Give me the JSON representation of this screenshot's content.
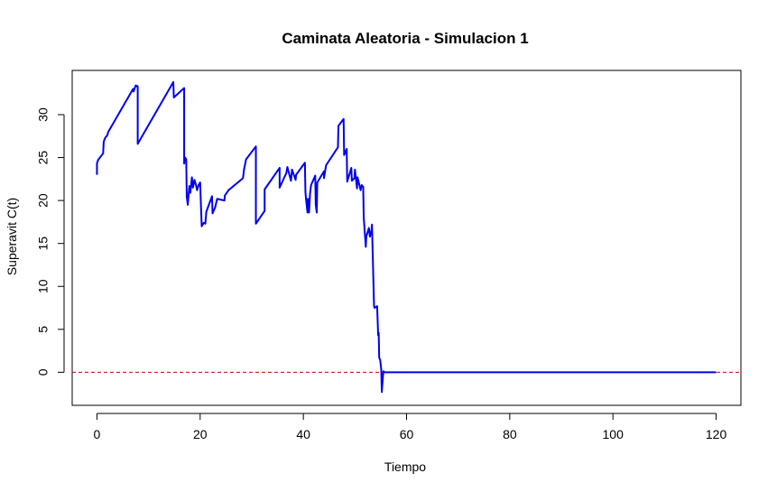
{
  "chart_data": {
    "type": "line",
    "title": "Caminata Aleatoria - Simulacion 1",
    "xlabel": "Tiempo",
    "ylabel": "Superavit C(t)",
    "xlim": [
      -4.8,
      124.8
    ],
    "ylim": [
      -3.85,
      35.15
    ],
    "xticks": [
      0,
      20,
      40,
      60,
      80,
      100,
      120
    ],
    "yticks": [
      0,
      5,
      10,
      15,
      20,
      25,
      30
    ],
    "grid": false,
    "legend": "none",
    "colors": {
      "series": "#0000ee",
      "reference": "#cc0000"
    },
    "reference_line": {
      "y": 0,
      "style": "dashed"
    },
    "series": [
      {
        "x": [
          0,
          0,
          0.2,
          1.2,
          1.3,
          1.4,
          1.6,
          2,
          2.2,
          7,
          7.1,
          7.5,
          7.9,
          7.9,
          14.8,
          14.9,
          16.9,
          16.9,
          17.1,
          17.3,
          17.4,
          17.6,
          17.9,
          18.1,
          18.4,
          18.6,
          18.9,
          19.2,
          19.4,
          19.7,
          20,
          20.3,
          20.7,
          21,
          21.2,
          22.3,
          22.4,
          22.9,
          23.1,
          23.3,
          24.7,
          24.8,
          25.5,
          28.3,
          28.5,
          28.9,
          30.8,
          30.8,
          32.5,
          32.5,
          35.4,
          35.4,
          36.7,
          36.9,
          37.6,
          37.8,
          38.5,
          38.6,
          40.3,
          40.4,
          40.5,
          40.8,
          40.9,
          41.1,
          41.3,
          41.5,
          42.3,
          42.4,
          42.6,
          42.7,
          44,
          44,
          44.4,
          46.7,
          46.8,
          47.8,
          47.9,
          48.4,
          48.5,
          49.3,
          49.4,
          49.9,
          50,
          50.4,
          50.5,
          51.1,
          51.3,
          51.6,
          51.7,
          52.1,
          52.2,
          52.7,
          52.9,
          53.2,
          53.3,
          53.7,
          53.8,
          54.3,
          54.5,
          54.6,
          54.7,
          54.9,
          55.1,
          55.2,
          55.5,
          55.6,
          55.6,
          55.7,
          120
        ],
        "y": [
          23,
          24.3,
          24.7,
          25.5,
          26.8,
          27,
          27.3,
          27.6,
          28,
          33,
          32.7,
          33.4,
          33.3,
          26.6,
          33.8,
          32,
          33.1,
          24.3,
          25,
          24.8,
          20.5,
          19.5,
          21.7,
          20.9,
          22.7,
          21.5,
          22.4,
          21.8,
          21.2,
          21.8,
          22.1,
          17,
          17.4,
          17.3,
          18.7,
          20.5,
          18.5,
          19.2,
          19.7,
          20.2,
          20,
          20.6,
          21.2,
          22.6,
          23.6,
          24.8,
          26.3,
          17.3,
          18.8,
          21.3,
          23.8,
          21.5,
          23.2,
          23.9,
          22.3,
          23.6,
          22.4,
          23,
          24.4,
          21,
          20.3,
          18.6,
          20.2,
          18.6,
          20.8,
          21.8,
          22.9,
          19.5,
          18.6,
          22.1,
          23.4,
          22.6,
          24.1,
          26.2,
          28.7,
          29.5,
          25.3,
          26,
          22.2,
          23.8,
          22.3,
          22.6,
          23.6,
          21.4,
          22.7,
          21.2,
          21.8,
          21.6,
          18.1,
          14.6,
          15.8,
          16.8,
          15.8,
          16.5,
          17.2,
          7.7,
          7.5,
          7.7,
          4.3,
          4.6,
          1.7,
          1.4,
          0.3,
          -2.3,
          0.1,
          0.1,
          0,
          0,
          0
        ]
      }
    ]
  }
}
